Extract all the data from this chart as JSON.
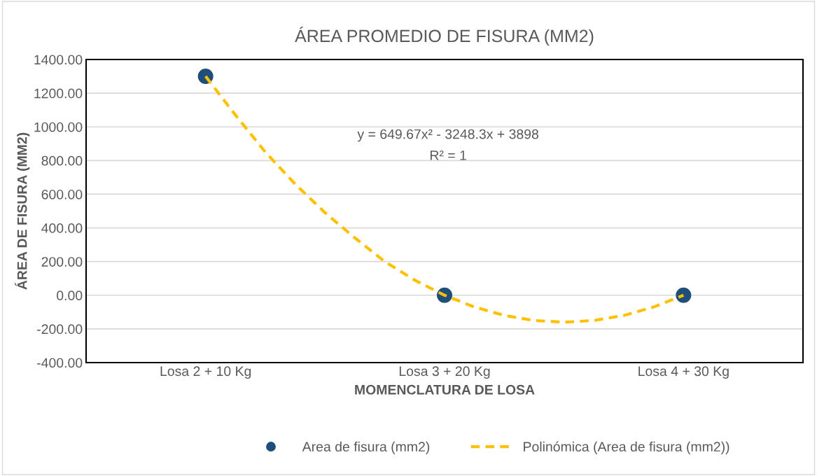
{
  "chart_data": {
    "type": "scatter",
    "title": "ÁREA PROMEDIO DE FISURA (MM2)",
    "xlabel": "MOMENCLATURA DE LOSA",
    "ylabel": "ÁREA DE FISURA (MM2)",
    "categories": [
      "Losa 2 + 10 Kg",
      null,
      null,
      null,
      null,
      null,
      null,
      null,
      "Losa 3 + 20 Kg",
      null,
      null,
      null,
      null,
      null,
      null,
      null,
      "Losa 4 + 30 Kg"
    ],
    "series": [
      {
        "name": "Area de fisura (mm2)",
        "color": "#1f4e79",
        "marker": "circle",
        "values": [
          1300,
          null,
          null,
          null,
          null,
          null,
          null,
          null,
          0,
          null,
          null,
          null,
          null,
          null,
          null,
          null,
          0
        ]
      },
      {
        "name": "Polinómica (Area de fisura (mm2))",
        "type": "line",
        "color": "#ffc000",
        "line_style": "dashed",
        "marker": "none",
        "values": [
          1300,
          1070,
          850,
          660,
          490,
          340,
          200,
          90,
          0,
          -70,
          -120,
          -150,
          -160,
          -150,
          -120,
          -70,
          0
        ]
      }
    ],
    "ylim": [
      -400,
      1400
    ],
    "yticks": [
      {
        "value": -400,
        "label": "-400.00"
      },
      {
        "value": -200,
        "label": "-200.00"
      },
      {
        "value": 0,
        "label": "0.00"
      },
      {
        "value": 200,
        "label": "200.00"
      },
      {
        "value": 400,
        "label": "400.00"
      },
      {
        "value": 600,
        "label": "600.00"
      },
      {
        "value": 800,
        "label": "800.00"
      },
      {
        "value": 1000,
        "label": "1000.00"
      },
      {
        "value": 1200,
        "label": "1200.00"
      },
      {
        "value": 1400,
        "label": "1400.00"
      }
    ],
    "annotations": [
      "y = 649.67x² - 3248.3x + 3898",
      "R² = 1"
    ],
    "grid": "y",
    "legend": "bottom"
  }
}
